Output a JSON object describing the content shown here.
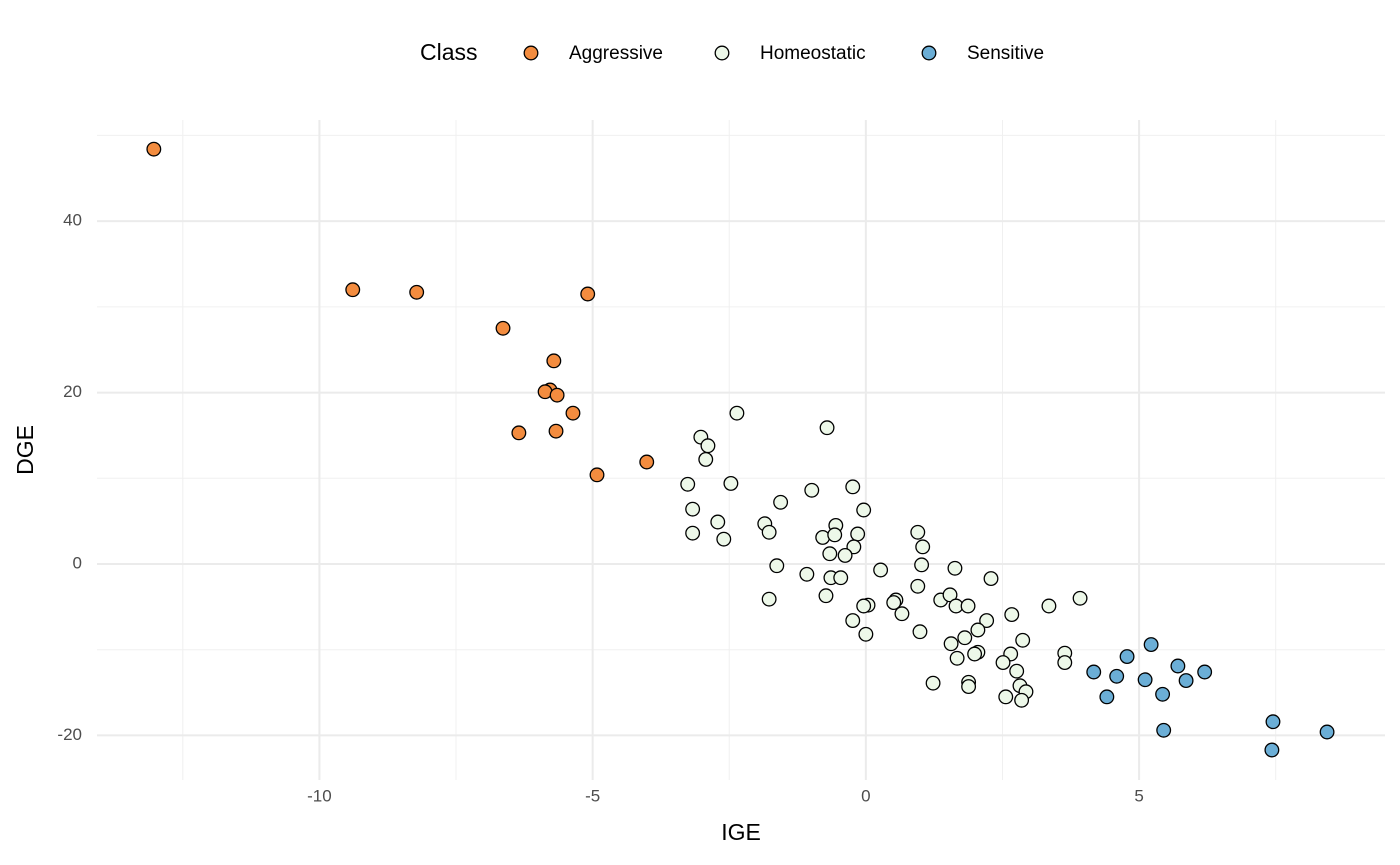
{
  "chart_data": {
    "type": "scatter",
    "x_label": "IGE",
    "y_label": "DGE",
    "legend_title": "Class",
    "legend_position": "top",
    "grid": true,
    "xlim": [
      -14.07,
      9.5
    ],
    "ylim": [
      -25.2,
      51.8
    ],
    "xticks": [
      -10,
      -5,
      0,
      5
    ],
    "yticks": [
      -20,
      0,
      20,
      40
    ],
    "minor_xticks": [
      -12.5,
      -7.5,
      -2.5,
      2.5,
      7.5
    ],
    "minor_yticks": [
      -10,
      10,
      30,
      50
    ],
    "series": [
      {
        "name": "Aggressive",
        "color": "#F38C3F",
        "x": [
          -13.03,
          -9.39,
          -8.22,
          -6.64,
          -5.09,
          -5.71,
          -5.78,
          -5.87,
          -5.65,
          -5.36,
          -6.35,
          -5.67,
          -4.92,
          -4.01
        ],
        "values": [
          48.4,
          32.0,
          31.7,
          27.5,
          31.5,
          23.7,
          20.3,
          20.1,
          19.7,
          17.6,
          15.3,
          15.5,
          10.4,
          11.9
        ]
      },
      {
        "name": "Homeostatic",
        "color": "#EDF8E9",
        "x": [
          -2.36,
          -0.71,
          -3.02,
          -2.89,
          -2.93,
          -3.26,
          -2.47,
          -0.99,
          -0.24,
          -1.56,
          -0.04,
          -3.17,
          -2.71,
          -1.85,
          -0.55,
          -1.77,
          0.95,
          -3.17,
          -0.79,
          -0.57,
          -0.15,
          -2.6,
          -0.22,
          1.04,
          -0.66,
          -0.38,
          1.02,
          -1.63,
          1.63,
          -1.08,
          0.27,
          -0.64,
          -0.46,
          2.29,
          0.95,
          -1.77,
          -0.73,
          1.37,
          1.54,
          0.55,
          0.51,
          3.92,
          3.35,
          0.04,
          -0.04,
          1.65,
          1.87,
          2.67,
          0.66,
          2.21,
          -0.24,
          2.05,
          0.99,
          0.0,
          1.81,
          2.87,
          1.56,
          2.05,
          3.64,
          2.65,
          1.99,
          1.67,
          2.51,
          3.64,
          2.76,
          1.88,
          1.23,
          1.88,
          2.82,
          2.93,
          2.56,
          2.85
        ],
        "values": [
          17.6,
          15.9,
          14.8,
          13.8,
          12.2,
          9.3,
          9.4,
          8.6,
          9.0,
          7.2,
          6.3,
          6.4,
          4.9,
          4.7,
          4.5,
          3.7,
          3.7,
          3.6,
          3.1,
          3.4,
          3.5,
          2.9,
          2.0,
          2.0,
          1.2,
          1.0,
          -0.1,
          -0.2,
          -0.5,
          -1.2,
          -0.7,
          -1.6,
          -1.6,
          -1.7,
          -2.6,
          -4.1,
          -3.7,
          -4.2,
          -3.6,
          -4.2,
          -4.5,
          -4.0,
          -4.9,
          -4.8,
          -4.9,
          -4.9,
          -4.9,
          -5.9,
          -5.8,
          -6.6,
          -6.6,
          -7.7,
          -7.9,
          -8.2,
          -8.6,
          -8.9,
          -9.3,
          -10.3,
          -10.4,
          -10.5,
          -10.5,
          -11.0,
          -11.5,
          -11.5,
          -12.5,
          -13.8,
          -13.9,
          -14.3,
          -14.2,
          -14.9,
          -15.5,
          -15.9
        ]
      },
      {
        "name": "Sensitive",
        "color": "#6BAED6",
        "x": [
          4.17,
          4.59,
          4.78,
          4.41,
          5.22,
          5.11,
          5.43,
          5.45,
          5.71,
          5.86,
          6.2,
          7.45,
          7.43,
          8.44
        ],
        "values": [
          -12.6,
          -13.1,
          -10.8,
          -15.5,
          -9.4,
          -13.5,
          -15.2,
          -19.4,
          -11.9,
          -13.6,
          -12.6,
          -18.4,
          -21.7,
          -19.6
        ]
      }
    ]
  }
}
